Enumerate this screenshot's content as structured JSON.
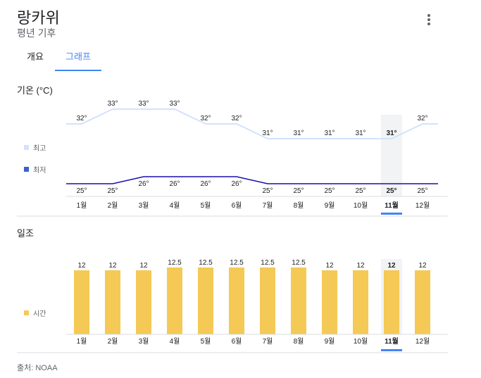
{
  "header": {
    "title": "랑카위",
    "subtitle": "평년 기후",
    "more_icon": "more-vert-icon"
  },
  "tabs": [
    {
      "label": "개요",
      "active": false
    },
    {
      "label": "그래프",
      "active": true
    }
  ],
  "temperature": {
    "title": "기온 (°C)",
    "legend": {
      "high": "최고",
      "low": "최저"
    }
  },
  "sunshine": {
    "title": "일조",
    "legend": {
      "hours": "시간"
    }
  },
  "source": "출처: NOAA",
  "colors": {
    "accent": "#4285f4",
    "high_line": "#d2e3fc",
    "low_line": "#1a0dab",
    "bar": "#f4c955",
    "highlight": "#f1f3f4"
  },
  "chart_data": [
    {
      "type": "line",
      "title": "기온 (°C)",
      "categories": [
        "1월",
        "2월",
        "3월",
        "4월",
        "5월",
        "6월",
        "7월",
        "8월",
        "9월",
        "10월",
        "11월",
        "12월"
      ],
      "series": [
        {
          "name": "최고",
          "values": [
            32,
            33,
            33,
            33,
            32,
            32,
            31,
            31,
            31,
            31,
            31,
            32
          ],
          "labels": [
            "32°",
            "33°",
            "33°",
            "33°",
            "32°",
            "32°",
            "31°",
            "31°",
            "31°",
            "31°",
            "31°",
            "32°"
          ]
        },
        {
          "name": "최저",
          "values": [
            25,
            25,
            26,
            26,
            26,
            26,
            25,
            25,
            25,
            25,
            25,
            25
          ],
          "labels": [
            "25°",
            "25°",
            "26°",
            "26°",
            "26°",
            "26°",
            "25°",
            "25°",
            "25°",
            "25°",
            "25°",
            "25°"
          ]
        }
      ],
      "highlight_index": 10
    },
    {
      "type": "bar",
      "title": "일조",
      "categories": [
        "1월",
        "2월",
        "3월",
        "4월",
        "5월",
        "6월",
        "7월",
        "8월",
        "9월",
        "10월",
        "11월",
        "12월"
      ],
      "series": [
        {
          "name": "시간",
          "values": [
            12,
            12,
            12,
            12.5,
            12.5,
            12.5,
            12.5,
            12.5,
            12,
            12,
            12,
            12
          ],
          "labels": [
            "12",
            "12",
            "12",
            "12.5",
            "12.5",
            "12.5",
            "12.5",
            "12.5",
            "12",
            "12",
            "12",
            "12"
          ]
        }
      ],
      "highlight_index": 10
    }
  ]
}
